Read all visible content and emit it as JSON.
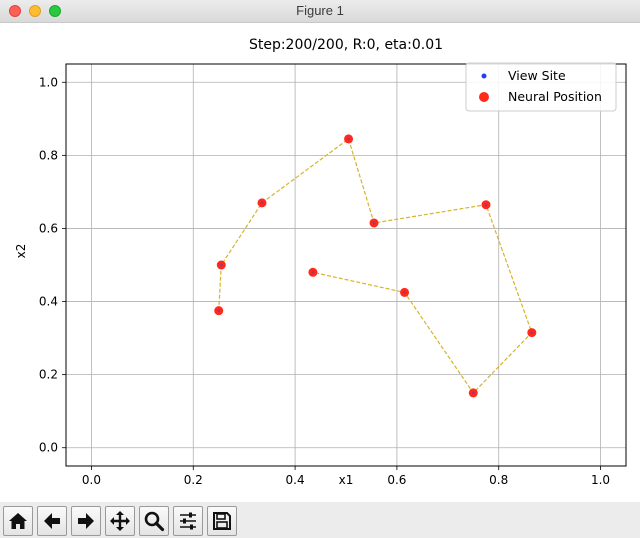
{
  "window": {
    "title": "Figure 1"
  },
  "toolbar": {
    "buttons": [
      {
        "icon": "home-icon"
      },
      {
        "icon": "back-arrow-icon"
      },
      {
        "icon": "forward-arrow-icon"
      },
      {
        "icon": "pan-move-icon"
      },
      {
        "icon": "zoom-magnifier-icon"
      },
      {
        "icon": "configure-subplots-icon"
      },
      {
        "icon": "save-floppy-icon"
      }
    ]
  },
  "chart_data": {
    "type": "scatter",
    "title": "Step:200/200, R:0, eta:0.01",
    "xlabel": "x1",
    "ylabel": "x2",
    "xlim": [
      -0.05,
      1.05
    ],
    "ylim": [
      -0.05,
      1.05
    ],
    "xticks": [
      "0.0",
      "0.2",
      "0.4",
      "0.6",
      "0.8",
      "1.0"
    ],
    "yticks": [
      "0.0",
      "0.2",
      "0.4",
      "0.6",
      "0.8",
      "1.0"
    ],
    "grid": true,
    "legend_location": "top-right",
    "legend": [
      "View Site",
      "Neural Position"
    ],
    "colors": {
      "view_site": "#1f3fff",
      "neural_position": "#ff2a1a",
      "path": "#d4b52a",
      "grid": "#b0b0b0"
    },
    "series": [
      {
        "name": "View Site",
        "x": [
          0.25,
          0.255,
          0.335,
          0.505,
          0.555,
          0.775,
          0.865,
          0.75,
          0.615,
          0.435
        ],
        "y": [
          0.375,
          0.5,
          0.67,
          0.845,
          0.615,
          0.665,
          0.315,
          0.15,
          0.425,
          0.48
        ]
      },
      {
        "name": "Neural Position",
        "x": [
          0.25,
          0.255,
          0.335,
          0.505,
          0.555,
          0.775,
          0.865,
          0.75,
          0.615,
          0.435
        ],
        "y": [
          0.375,
          0.5,
          0.67,
          0.845,
          0.615,
          0.665,
          0.315,
          0.15,
          0.425,
          0.48
        ]
      }
    ]
  }
}
